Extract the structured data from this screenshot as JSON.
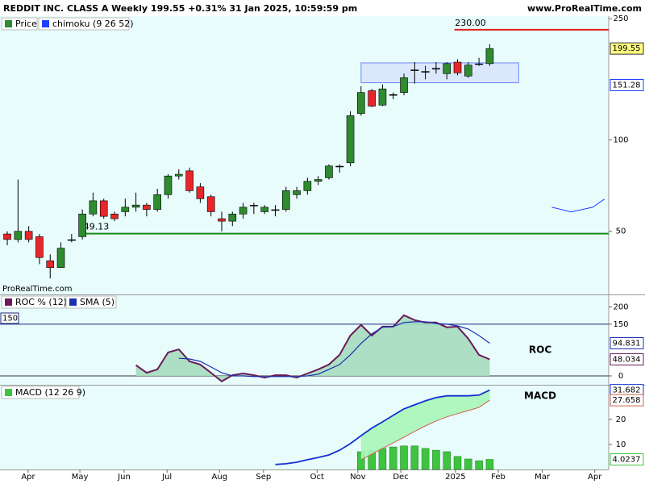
{
  "header": {
    "title": "REDDIT INC. CLASS A Weekly 199.55 +0.31% 31 Jan 2025, 10:59:59 pm",
    "site": "www.ProRealTime.com",
    "watermark": "ProRealTime.com"
  },
  "x_axis": {
    "xlim": [
      -0.68,
      56.1
    ],
    "xticks": [
      {
        "value": 1.95,
        "label": "Apr"
      },
      {
        "value": 6.77,
        "label": "May"
      },
      {
        "value": 10.9,
        "label": "Jun"
      },
      {
        "value": 14.9,
        "label": "Jul"
      },
      {
        "value": 19.8,
        "label": "Aug"
      },
      {
        "value": 23.9,
        "label": "Sep"
      },
      {
        "value": 28.9,
        "label": "Oct"
      },
      {
        "value": 32.7,
        "label": "Nov"
      },
      {
        "value": 36.7,
        "label": "Dec"
      },
      {
        "value": 41.8,
        "label": "2025"
      },
      {
        "value": 45.8,
        "label": "Feb"
      },
      {
        "value": 49.9,
        "label": "Mar"
      },
      {
        "value": 54.8,
        "label": "Apr"
      }
    ]
  },
  "chart_data": [
    {
      "type": "candlestick",
      "log_scale": true,
      "ylim": [
        31,
        255
      ],
      "yticks": [
        50,
        100,
        250
      ],
      "legend": [
        {
          "name": "Price",
          "color": "#2e8b2e"
        },
        {
          "name": "chimoku (9 26 52)",
          "color": "#1f3fff"
        }
      ],
      "up_color": "#2e8b2e",
      "down_color": "#e8262a",
      "x": [
        0,
        1,
        2,
        3,
        4,
        5,
        6,
        7,
        8,
        9,
        10,
        11,
        12,
        13,
        14,
        15,
        16,
        17,
        18,
        19,
        20,
        21,
        22,
        23,
        24,
        25,
        26,
        27,
        28,
        29,
        30,
        31,
        32,
        33,
        34,
        35,
        36,
        37,
        38,
        39,
        40,
        41,
        42,
        43,
        44,
        45
      ],
      "open": [
        49,
        47,
        50,
        48,
        40,
        38,
        47,
        48,
        57,
        63,
        57,
        58,
        60,
        61,
        59,
        66,
        76,
        79,
        70,
        65,
        55,
        54,
        57,
        61,
        58,
        59,
        59,
        66,
        68,
        73,
        75,
        82,
        84,
        122,
        145,
        130,
        140,
        143,
        170,
        168,
        172,
        165,
        180,
        162,
        178,
        178
      ],
      "high": [
        50,
        74,
        52,
        49,
        42,
        46,
        49,
        59,
        67,
        64,
        58,
        64,
        67,
        62,
        69,
        77,
        80,
        81,
        72,
        66,
        58,
        58,
        62,
        62,
        61,
        61,
        70,
        70,
        75,
        76,
        83,
        83,
        124,
        150,
        147,
        152,
        143,
        165,
        180,
        175,
        180,
        180,
        184,
        180,
        186,
        206
      ],
      "low": [
        45,
        46,
        46,
        39,
        35,
        38,
        46,
        47,
        56,
        55,
        54,
        56,
        58,
        56,
        58,
        64,
        74,
        67,
        62,
        56,
        50,
        52,
        55,
        57,
        57,
        56,
        58,
        64,
        66,
        71,
        74,
        78,
        82,
        120,
        128,
        129,
        136,
        140,
        153,
        158,
        165,
        158,
        163,
        160,
        175,
        175
      ],
      "close": [
        47,
        50,
        47,
        41,
        38,
        44,
        47,
        57,
        63,
        56,
        55,
        60,
        61,
        59,
        66,
        76,
        77,
        68,
        64,
        58,
        54,
        57,
        60,
        61,
        60,
        59,
        68,
        68,
        73,
        74,
        82,
        82,
        120,
        143,
        129,
        147,
        141,
        160,
        170,
        168,
        172,
        178,
        166,
        176,
        178,
        199.55
      ],
      "hlines": [
        {
          "value": 230,
          "label": "230.00",
          "color": "#e02020",
          "x_start": 41.7
        },
        {
          "value": 49.13,
          "label": "49.13",
          "color": "#1a8a1a",
          "x_start": 6.8
        }
      ],
      "cloud_box": {
        "x": [
          33.0,
          47.7
        ],
        "y": [
          154,
          179
        ],
        "color": "#1f3fff"
      },
      "chimoku_line": {
        "x": [
          50.8,
          52.6,
          54.6,
          55.7
        ],
        "values": [
          60,
          57.9,
          60,
          63.8
        ],
        "color": "#1f3fff"
      },
      "axis_tags": [
        199.55,
        151.28
      ]
    },
    {
      "type": "line",
      "ylim": [
        -25.8,
        234
      ],
      "yticks": [
        0,
        150,
        200
      ],
      "level": 150,
      "level_color": "#1c2a80",
      "annotation": "ROC",
      "annotation_color": "#6a1a8a",
      "x": [
        12,
        13,
        14,
        15,
        16,
        17,
        18,
        19,
        20,
        21,
        22,
        23,
        24,
        25,
        26,
        27,
        28,
        29,
        30,
        31,
        32,
        33,
        34,
        35,
        36,
        37,
        38,
        39,
        40,
        41,
        42,
        43,
        44,
        45
      ],
      "series": [
        {
          "name": "ROC % (12)",
          "color": "#6a1a5a",
          "fill": "#a5dcbd",
          "values": [
            31,
            9,
            19,
            68,
            77,
            42,
            33,
            9,
            -16,
            2,
            7,
            2,
            -5,
            2,
            2,
            -5,
            7,
            19,
            33,
            61,
            117,
            148,
            117,
            143,
            143,
            176,
            162,
            155,
            155,
            141,
            143,
            108,
            61,
            48.034
          ]
        },
        {
          "name": "SMA (5)",
          "color": "#1c2fb0",
          "values": [
            null,
            null,
            null,
            null,
            51,
            49,
            42,
            26,
            9,
            0,
            0,
            -2,
            -2,
            -2,
            -2,
            -2,
            0,
            5,
            19,
            33,
            61,
            94,
            122,
            141,
            143,
            155,
            157,
            157,
            152,
            150,
            145,
            136,
            117,
            94.831
          ]
        }
      ],
      "axis_tags": [
        94.831,
        48.034
      ]
    },
    {
      "type": "macd",
      "ylim": [
        0,
        33.5
      ],
      "yticks": [
        10,
        20
      ],
      "annotation": "MACD",
      "annotation_color": "#6a1a8a",
      "x": [
        25,
        26,
        27,
        28,
        29,
        30,
        31,
        32,
        33,
        34,
        35,
        36,
        37,
        38,
        39,
        40,
        41,
        42,
        43,
        44,
        45
      ],
      "macd": {
        "name": "MACD (12 26 9)",
        "color": "#1530d0",
        "values": [
          2.0,
          2.3,
          2.9,
          3.9,
          4.8,
          5.8,
          7.7,
          10.3,
          13.5,
          16.5,
          19,
          21.6,
          24.2,
          25.8,
          27.4,
          28.7,
          29.4,
          29.4,
          29.4,
          29.7,
          31.682
        ]
      },
      "signal": {
        "color": "#d06050",
        "fill": "#a8f5b8",
        "values": [
          null,
          null,
          null,
          null,
          null,
          null,
          null,
          null,
          3.9,
          6.1,
          8.4,
          10.6,
          12.9,
          15.2,
          17.4,
          19.4,
          21,
          22.3,
          23.5,
          24.8,
          27.658
        ]
      },
      "histogram": {
        "color": "#3ec43e",
        "values": [
          null,
          null,
          null,
          null,
          null,
          null,
          null,
          null,
          7.1,
          7.7,
          8.4,
          9,
          9.4,
          9.4,
          8.4,
          7.7,
          7.1,
          5.2,
          4.2,
          3.5,
          4.0237
        ]
      },
      "axis_tags": [
        31.682,
        27.658,
        4.0237
      ]
    }
  ]
}
